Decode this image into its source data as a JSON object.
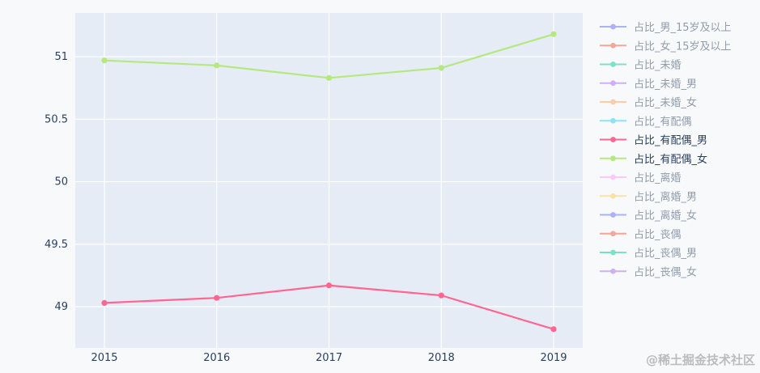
{
  "chart_data": {
    "type": "line",
    "x": [
      2015,
      2016,
      2017,
      2018,
      2019
    ],
    "ylim": [
      48.67,
      51.35
    ],
    "yticks": [
      49,
      49.5,
      50,
      50.5,
      51
    ],
    "ytick_labels": [
      "49",
      "49.5",
      "50",
      "50.5",
      "51"
    ],
    "xtick_labels": [
      "2015",
      "2016",
      "2017",
      "2018",
      "2019"
    ],
    "grid": true,
    "legend_position": "right",
    "series": [
      {
        "name": "占比_男_15岁及以上",
        "color": "#636efa",
        "visible": false
      },
      {
        "name": "占比_女_15岁及以上",
        "color": "#ef553b",
        "visible": false
      },
      {
        "name": "占比_未婚",
        "color": "#00cc96",
        "visible": false
      },
      {
        "name": "占比_未婚_男",
        "color": "#ab63fa",
        "visible": false
      },
      {
        "name": "占比_未婚_女",
        "color": "#ffa15a",
        "visible": false
      },
      {
        "name": "占比_有配偶",
        "color": "#19d3f3",
        "visible": false
      },
      {
        "name": "占比_有配偶_男",
        "color": "#ff6692",
        "visible": true,
        "values": [
          49.03,
          49.07,
          49.17,
          49.09,
          48.82
        ]
      },
      {
        "name": "占比_有配偶_女",
        "color": "#b6e880",
        "visible": true,
        "values": [
          50.97,
          50.93,
          50.83,
          50.91,
          51.18
        ]
      },
      {
        "name": "占比_离婚",
        "color": "#ff97ff",
        "visible": false
      },
      {
        "name": "占比_离婚_男",
        "color": "#fecb52",
        "visible": false
      },
      {
        "name": "占比_离婚_女",
        "color": "#636efa",
        "visible": false
      },
      {
        "name": "占比_丧偶",
        "color": "#ef553b",
        "visible": false
      },
      {
        "name": "占比_丧偶_男",
        "color": "#00cc96",
        "visible": false
      },
      {
        "name": "占比_丧偶_女",
        "color": "#ab63fa",
        "visible": false
      }
    ]
  },
  "watermark": "@稀土掘金技术社区"
}
